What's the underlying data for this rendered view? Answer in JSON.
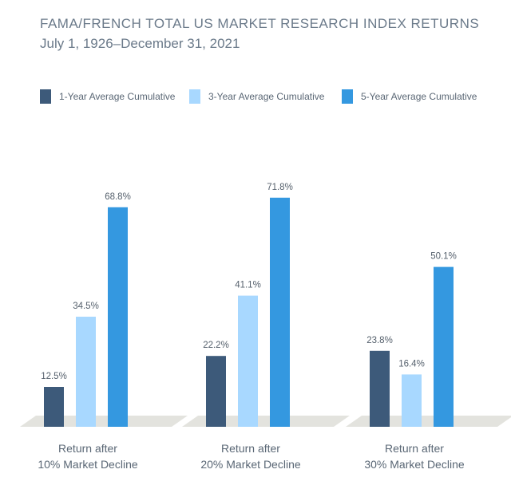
{
  "title": "FAMA/FRENCH TOTAL US MARKET RESEARCH INDEX RETURNS",
  "subtitle": "July 1, 1926–December 31, 2021",
  "colors": {
    "series_1": "#3d5a7a",
    "series_2": "#a8d8ff",
    "series_3": "#3498e0",
    "floor": "#e3e3de",
    "text": "#5a6775",
    "title": "#6b7a8a"
  },
  "chart_data": {
    "type": "bar",
    "title": "FAMA/FRENCH TOTAL US MARKET RESEARCH INDEX RETURNS",
    "subtitle": "July 1, 1926–December 31, 2021",
    "categories": [
      [
        "Return after",
        "10% Market Decline"
      ],
      [
        "Return after",
        "20% Market Decline"
      ],
      [
        "Return after",
        "30% Market Decline"
      ]
    ],
    "series": [
      {
        "name": "1-Year Average Cumulative",
        "values": [
          12.5,
          22.2,
          23.8
        ],
        "labels": [
          "12.5%",
          "22.2%",
          "23.8%"
        ]
      },
      {
        "name": "3-Year Average Cumulative",
        "values": [
          34.5,
          41.1,
          16.4
        ],
        "labels": [
          "34.5%",
          "41.1%",
          "16.4%"
        ]
      },
      {
        "name": "5-Year Average Cumulative",
        "values": [
          68.8,
          71.8,
          50.1
        ],
        "labels": [
          "68.8%",
          "71.8%",
          "50.1%"
        ]
      }
    ],
    "unit": "%",
    "ylim": [
      0,
      80
    ],
    "grid": false,
    "legend_position": "top"
  }
}
